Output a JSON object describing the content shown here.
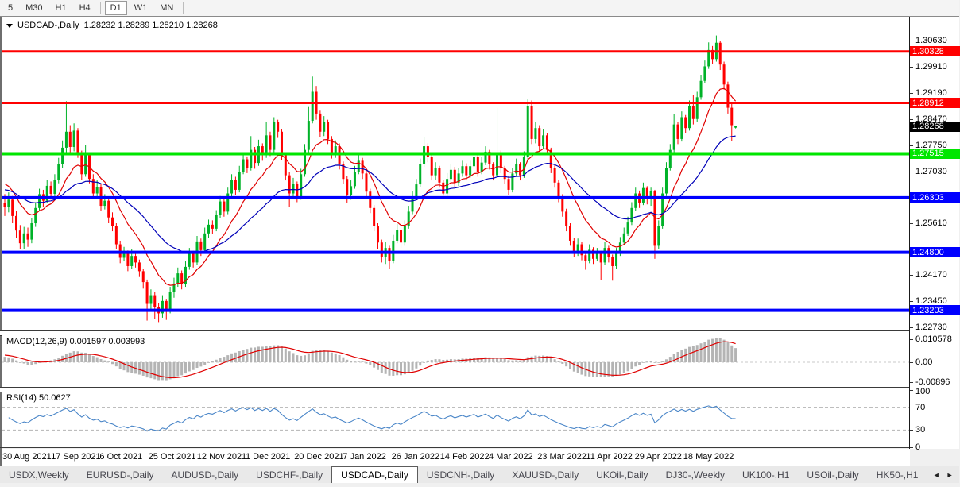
{
  "toolbar": {
    "timeframes": [
      "5",
      "M30",
      "H1",
      "H4",
      "D1",
      "W1",
      "MN"
    ],
    "active_timeframe": "D1"
  },
  "chart": {
    "title_symbol": "USDCAD-,Daily",
    "title_ohlc": "1.28232 1.28289 1.28210 1.28268"
  },
  "indicators": {
    "macd": {
      "name": "MACD(12,26,9)",
      "display_values": "0.001597 0.003993",
      "axis_ticks": [
        "0.010578",
        "0.00",
        "-0.00896"
      ]
    },
    "rsi": {
      "name": "RSI(14)",
      "display_value": "50.0627",
      "axis_ticks": [
        "100",
        "70",
        "30",
        "0"
      ],
      "levels": [
        70,
        30
      ]
    }
  },
  "price_axis": {
    "ticks": [
      "1.30630",
      "1.29910",
      "1.29190",
      "1.28470",
      "1.27750",
      "1.27030",
      "1.25610",
      "1.24170",
      "1.23450",
      "1.22730"
    ],
    "current_price": "1.28268",
    "current_price_bg": "#000000"
  },
  "chart_data": {
    "type": "candlestick",
    "symbol": "USDCAD",
    "timeframe": "Daily",
    "bull_color": "#00b228",
    "bear_color": "#ff0000",
    "ma_fast_color": "#e00000",
    "ma_slow_color": "#0000b8",
    "macd_hist_color": "#b4b4b4",
    "macd_signal_color": "#e00000",
    "rsi_color": "#4a86c8",
    "x_axis_labels": [
      "30 Aug 2021",
      "17 Sep 2021",
      "6 Oct 2021",
      "25 Oct 2021",
      "12 Nov 2021",
      "1 Dec 2021",
      "20 Dec 2021",
      "7 Jan 2022",
      "26 Jan 2022",
      "14 Feb 2022",
      "4 Mar 2022",
      "23 Mar 2022",
      "11 Apr 2022",
      "29 Apr 2022",
      "18 May 2022"
    ],
    "hlines": [
      {
        "price": "1.30328",
        "color": "#ff0000"
      },
      {
        "price": "1.28912",
        "color": "#ff0000"
      },
      {
        "price": "1.27515",
        "color": "#00e600"
      },
      {
        "price": "1.26303",
        "color": "#0000ff"
      },
      {
        "price": "1.24800",
        "color": "#0000ff"
      },
      {
        "price": "1.23203",
        "color": "#0000ff"
      }
    ],
    "candles": [
      [
        1.2615,
        1.264,
        1.258,
        1.2605
      ],
      [
        1.2605,
        1.2645,
        1.259,
        1.2625
      ],
      [
        1.2625,
        1.2635,
        1.256,
        1.258
      ],
      [
        1.258,
        1.2595,
        1.252,
        1.254
      ],
      [
        1.254,
        1.2555,
        1.2488,
        1.2505
      ],
      [
        1.2505,
        1.255,
        1.249,
        1.2532
      ],
      [
        1.2532,
        1.2548,
        1.2495,
        1.2515
      ],
      [
        1.2515,
        1.2575,
        1.2505,
        1.256
      ],
      [
        1.256,
        1.2618,
        1.255,
        1.2602
      ],
      [
        1.2602,
        1.2655,
        1.2595,
        1.264
      ],
      [
        1.264,
        1.2652,
        1.2605,
        1.2622
      ],
      [
        1.2622,
        1.268,
        1.2615,
        1.2663
      ],
      [
        1.2663,
        1.2675,
        1.2625,
        1.2641
      ],
      [
        1.2641,
        1.2695,
        1.2632,
        1.268
      ],
      [
        1.268,
        1.274,
        1.267,
        1.2722
      ],
      [
        1.2722,
        1.2788,
        1.2712,
        1.2768
      ],
      [
        1.2768,
        1.2896,
        1.2755,
        1.2812
      ],
      [
        1.2812,
        1.283,
        1.2748,
        1.277
      ],
      [
        1.277,
        1.2835,
        1.2758,
        1.2815
      ],
      [
        1.2815,
        1.2822,
        1.274,
        1.2752
      ],
      [
        1.2752,
        1.276,
        1.268,
        1.2695
      ],
      [
        1.2695,
        1.2775,
        1.2688,
        1.2748
      ],
      [
        1.2748,
        1.2755,
        1.267,
        1.2682
      ],
      [
        1.2682,
        1.2695,
        1.2628,
        1.2642
      ],
      [
        1.2642,
        1.2678,
        1.263,
        1.266
      ],
      [
        1.266,
        1.2668,
        1.2595,
        1.2608
      ],
      [
        1.2608,
        1.264,
        1.2598,
        1.2622
      ],
      [
        1.2622,
        1.263,
        1.256,
        1.2576
      ],
      [
        1.2576,
        1.259,
        1.2538,
        1.2552
      ],
      [
        1.2552,
        1.256,
        1.2488,
        1.2502
      ],
      [
        1.2502,
        1.2512,
        1.245,
        1.2465
      ],
      [
        1.2465,
        1.2495,
        1.2455,
        1.2478
      ],
      [
        1.2478,
        1.2485,
        1.2428,
        1.2442
      ],
      [
        1.2442,
        1.2488,
        1.2435,
        1.247
      ],
      [
        1.247,
        1.248,
        1.2438,
        1.2452
      ],
      [
        1.2452,
        1.246,
        1.2412,
        1.2428
      ],
      [
        1.2428,
        1.2435,
        1.238,
        1.2398
      ],
      [
        1.2398,
        1.2405,
        1.2292,
        1.2338
      ],
      [
        1.2338,
        1.2378,
        1.232,
        1.2362
      ],
      [
        1.2362,
        1.237,
        1.2296,
        1.233
      ],
      [
        1.233,
        1.234,
        1.2288,
        1.2312
      ],
      [
        1.2312,
        1.2362,
        1.23,
        1.2346
      ],
      [
        1.2346,
        1.2352,
        1.2294,
        1.2321
      ],
      [
        1.2321,
        1.2385,
        1.2312,
        1.237
      ],
      [
        1.237,
        1.241,
        1.2355,
        1.2394
      ],
      [
        1.2394,
        1.2438,
        1.2385,
        1.2422
      ],
      [
        1.2422,
        1.243,
        1.2378,
        1.2392
      ],
      [
        1.2392,
        1.2455,
        1.2385,
        1.244
      ],
      [
        1.244,
        1.2492,
        1.2432,
        1.2476
      ],
      [
        1.2476,
        1.2484,
        1.2438,
        1.2452
      ],
      [
        1.2452,
        1.2525,
        1.2445,
        1.251
      ],
      [
        1.251,
        1.2518,
        1.247,
        1.2486
      ],
      [
        1.2486,
        1.2548,
        1.2478,
        1.2532
      ],
      [
        1.2532,
        1.257,
        1.252,
        1.2556
      ],
      [
        1.2556,
        1.2568,
        1.253,
        1.2545
      ],
      [
        1.2545,
        1.2596,
        1.2538,
        1.2582
      ],
      [
        1.2582,
        1.2635,
        1.2574,
        1.262
      ],
      [
        1.262,
        1.2628,
        1.2578,
        1.2592
      ],
      [
        1.2592,
        1.2658,
        1.2585,
        1.2642
      ],
      [
        1.2642,
        1.2695,
        1.2634,
        1.268
      ],
      [
        1.268,
        1.2688,
        1.2638,
        1.2652
      ],
      [
        1.2652,
        1.2718,
        1.2645,
        1.2702
      ],
      [
        1.2702,
        1.2752,
        1.2695,
        1.2736
      ],
      [
        1.2736,
        1.2744,
        1.2698,
        1.2712
      ],
      [
        1.2712,
        1.28,
        1.2705,
        1.2762
      ],
      [
        1.2762,
        1.277,
        1.271,
        1.2726
      ],
      [
        1.2726,
        1.279,
        1.2718,
        1.2772
      ],
      [
        1.2772,
        1.278,
        1.2732,
        1.2748
      ],
      [
        1.2748,
        1.284,
        1.274,
        1.2802
      ],
      [
        1.2802,
        1.2812,
        1.2745,
        1.2762
      ],
      [
        1.2762,
        1.2852,
        1.2755,
        1.2838
      ],
      [
        1.2838,
        1.2845,
        1.2795,
        1.2812
      ],
      [
        1.2812,
        1.2818,
        1.2735,
        1.2748
      ],
      [
        1.2748,
        1.2755,
        1.2678,
        1.2692
      ],
      [
        1.2692,
        1.27,
        1.2605,
        1.2642
      ],
      [
        1.2642,
        1.2685,
        1.263,
        1.2668
      ],
      [
        1.2668,
        1.2675,
        1.2618,
        1.2632
      ],
      [
        1.2632,
        1.271,
        1.2625,
        1.2695
      ],
      [
        1.2695,
        1.2778,
        1.2688,
        1.2762
      ],
      [
        1.2762,
        1.288,
        1.2755,
        1.2842
      ],
      [
        1.2842,
        1.2964,
        1.2835,
        1.2922
      ],
      [
        1.2922,
        1.2938,
        1.2845,
        1.2862
      ],
      [
        1.2862,
        1.287,
        1.2798,
        1.2812
      ],
      [
        1.2812,
        1.2855,
        1.28,
        1.2838
      ],
      [
        1.2838,
        1.2845,
        1.2778,
        1.2792
      ],
      [
        1.2792,
        1.28,
        1.2738,
        1.2752
      ],
      [
        1.2752,
        1.2788,
        1.274,
        1.2772
      ],
      [
        1.2772,
        1.278,
        1.2708,
        1.2722
      ],
      [
        1.2722,
        1.273,
        1.2668,
        1.2682
      ],
      [
        1.2682,
        1.269,
        1.2617,
        1.2637
      ],
      [
        1.2637,
        1.2678,
        1.2625,
        1.2662
      ],
      [
        1.2662,
        1.2718,
        1.2655,
        1.2702
      ],
      [
        1.2702,
        1.2748,
        1.2695,
        1.2732
      ],
      [
        1.2732,
        1.274,
        1.2682,
        1.2697
      ],
      [
        1.2697,
        1.2705,
        1.2632,
        1.2647
      ],
      [
        1.2647,
        1.2655,
        1.2588,
        1.2602
      ],
      [
        1.2602,
        1.261,
        1.2538,
        1.2552
      ],
      [
        1.2552,
        1.256,
        1.249,
        1.2507
      ],
      [
        1.2507,
        1.2515,
        1.2452,
        1.2467
      ],
      [
        1.2467,
        1.2508,
        1.2448,
        1.2492
      ],
      [
        1.2492,
        1.2498,
        1.2435,
        1.2457
      ],
      [
        1.2457,
        1.2528,
        1.245,
        1.2512
      ],
      [
        1.2512,
        1.2558,
        1.2505,
        1.2542
      ],
      [
        1.2542,
        1.2548,
        1.2492,
        1.2507
      ],
      [
        1.2507,
        1.2568,
        1.2498,
        1.2552
      ],
      [
        1.2552,
        1.2608,
        1.2545,
        1.2592
      ],
      [
        1.2592,
        1.2648,
        1.2585,
        1.2632
      ],
      [
        1.2632,
        1.2682,
        1.2625,
        1.2667
      ],
      [
        1.2667,
        1.2738,
        1.266,
        1.2722
      ],
      [
        1.2722,
        1.2797,
        1.2715,
        1.2772
      ],
      [
        1.2772,
        1.278,
        1.2728,
        1.2742
      ],
      [
        1.2742,
        1.2748,
        1.2678,
        1.2692
      ],
      [
        1.2692,
        1.2728,
        1.268,
        1.2712
      ],
      [
        1.2712,
        1.2718,
        1.2658,
        1.2672
      ],
      [
        1.2672,
        1.268,
        1.2636,
        1.2642
      ],
      [
        1.2642,
        1.2698,
        1.2635,
        1.2682
      ],
      [
        1.2682,
        1.2722,
        1.267,
        1.2707
      ],
      [
        1.2707,
        1.2715,
        1.2658,
        1.2672
      ],
      [
        1.2672,
        1.2712,
        1.2662,
        1.2697
      ],
      [
        1.2697,
        1.2732,
        1.2688,
        1.2717
      ],
      [
        1.2717,
        1.2725,
        1.2678,
        1.2692
      ],
      [
        1.2692,
        1.2732,
        1.2685,
        1.2717
      ],
      [
        1.2717,
        1.2758,
        1.271,
        1.2742
      ],
      [
        1.2742,
        1.2748,
        1.2688,
        1.2702
      ],
      [
        1.2702,
        1.2742,
        1.2695,
        1.2727
      ],
      [
        1.2727,
        1.2772,
        1.272,
        1.2757
      ],
      [
        1.2757,
        1.2762,
        1.2708,
        1.2722
      ],
      [
        1.2722,
        1.2728,
        1.2678,
        1.2692
      ],
      [
        1.2692,
        1.2877,
        1.2685,
        1.2752
      ],
      [
        1.2752,
        1.276,
        1.2698,
        1.2712
      ],
      [
        1.2712,
        1.2718,
        1.2668,
        1.2682
      ],
      [
        1.2682,
        1.269,
        1.2638,
        1.2652
      ],
      [
        1.2652,
        1.2712,
        1.2645,
        1.2697
      ],
      [
        1.2697,
        1.2738,
        1.269,
        1.2722
      ],
      [
        1.2722,
        1.2728,
        1.2678,
        1.2692
      ],
      [
        1.2692,
        1.2758,
        1.2685,
        1.2742
      ],
      [
        1.2742,
        1.2901,
        1.2735,
        1.2882
      ],
      [
        1.2882,
        1.2898,
        1.2778,
        1.2792
      ],
      [
        1.2792,
        1.284,
        1.278,
        1.2822
      ],
      [
        1.2822,
        1.283,
        1.2758,
        1.2772
      ],
      [
        1.2772,
        1.2818,
        1.2765,
        1.2802
      ],
      [
        1.2802,
        1.2808,
        1.2748,
        1.2762
      ],
      [
        1.2762,
        1.2768,
        1.2698,
        1.2712
      ],
      [
        1.2712,
        1.272,
        1.2658,
        1.2672
      ],
      [
        1.2672,
        1.268,
        1.2618,
        1.2632
      ],
      [
        1.2632,
        1.264,
        1.2578,
        1.2592
      ],
      [
        1.2592,
        1.26,
        1.2538,
        1.2552
      ],
      [
        1.2552,
        1.256,
        1.2498,
        1.2512
      ],
      [
        1.2512,
        1.252,
        1.2468,
        1.2482
      ],
      [
        1.2482,
        1.2518,
        1.247,
        1.2502
      ],
      [
        1.2502,
        1.2508,
        1.2458,
        1.2472
      ],
      [
        1.2472,
        1.248,
        1.2432,
        1.2457
      ],
      [
        1.2457,
        1.2502,
        1.245,
        1.2487
      ],
      [
        1.2487,
        1.2494,
        1.2448,
        1.2462
      ],
      [
        1.2462,
        1.2492,
        1.2455,
        1.2477
      ],
      [
        1.2477,
        1.2484,
        1.2403,
        1.2452
      ],
      [
        1.2452,
        1.2508,
        1.2445,
        1.2492
      ],
      [
        1.2492,
        1.2498,
        1.2452,
        1.2467
      ],
      [
        1.2467,
        1.2474,
        1.2402,
        1.2442
      ],
      [
        1.2442,
        1.2492,
        1.2435,
        1.2477
      ],
      [
        1.2477,
        1.2522,
        1.247,
        1.2507
      ],
      [
        1.2507,
        1.2548,
        1.25,
        1.2532
      ],
      [
        1.2532,
        1.2578,
        1.2525,
        1.2562
      ],
      [
        1.2562,
        1.2618,
        1.2555,
        1.2602
      ],
      [
        1.2602,
        1.2658,
        1.2595,
        1.2642
      ],
      [
        1.2642,
        1.265,
        1.2602,
        1.2617
      ],
      [
        1.2617,
        1.2672,
        1.261,
        1.2657
      ],
      [
        1.2657,
        1.2662,
        1.2612,
        1.2627
      ],
      [
        1.2627,
        1.2658,
        1.2608,
        1.2648
      ],
      [
        1.2648,
        1.2652,
        1.2462,
        1.2498
      ],
      [
        1.2498,
        1.2568,
        1.2488,
        1.2552
      ],
      [
        1.2552,
        1.2658,
        1.2545,
        1.2642
      ],
      [
        1.2642,
        1.2728,
        1.2635,
        1.2712
      ],
      [
        1.2712,
        1.2778,
        1.2705,
        1.2762
      ],
      [
        1.2762,
        1.286,
        1.2755,
        1.2832
      ],
      [
        1.2832,
        1.284,
        1.2778,
        1.2792
      ],
      [
        1.2792,
        1.2868,
        1.2785,
        1.2852
      ],
      [
        1.2852,
        1.2858,
        1.2808,
        1.2822
      ],
      [
        1.2822,
        1.2898,
        1.2815,
        1.2882
      ],
      [
        1.2882,
        1.2914,
        1.2832,
        1.2847
      ],
      [
        1.2847,
        1.2922,
        1.284,
        1.2907
      ],
      [
        1.2907,
        1.2968,
        1.29,
        1.2952
      ],
      [
        1.2952,
        1.3008,
        1.2945,
        1.2992
      ],
      [
        1.2992,
        1.3058,
        1.2985,
        1.3037
      ],
      [
        1.3037,
        1.3048,
        1.2998,
        1.3012
      ],
      [
        1.3012,
        1.3077,
        1.3005,
        1.3057
      ],
      [
        1.3057,
        1.3062,
        1.2982,
        1.2997
      ],
      [
        1.2997,
        1.3005,
        1.2928,
        1.2942
      ],
      [
        1.2942,
        1.295,
        1.2862,
        1.2878
      ],
      [
        1.2878,
        1.289,
        1.2786,
        1.283
      ],
      [
        1.28232,
        1.28289,
        1.2821,
        1.28268
      ]
    ]
  },
  "bottom_tabs": {
    "tabs": [
      "USDX,Weekly",
      "EURUSD-,Daily",
      "AUDUSD-,Daily",
      "USDCHF-,Daily",
      "USDCAD-,Daily",
      "USDCNH-,Daily",
      "XAUUSD-,Daily",
      "UKOil-,Daily",
      "DJ30-,Weekly",
      "UK100-,H1",
      "USOil-,Daily",
      "HK50-,H1"
    ],
    "active_tab": "USDCAD-,Daily",
    "scroll_left": "◄",
    "scroll_right": "►"
  }
}
